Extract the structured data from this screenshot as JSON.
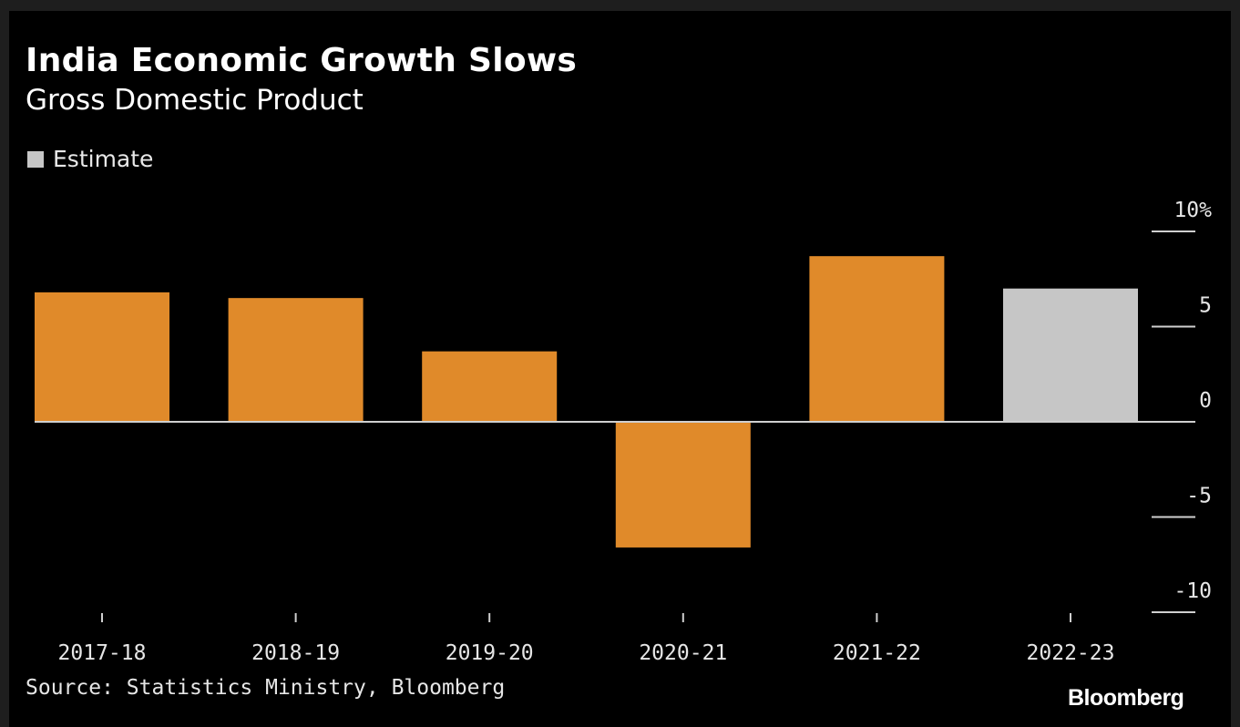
{
  "colors": {
    "background": "#000000",
    "actual": "#e08a2a",
    "estimate": "#c6c6c6",
    "axis": "#cfcfcf",
    "text": "#ffffff"
  },
  "chart_data": {
    "type": "bar",
    "title": "India Economic Growth Slows",
    "subtitle": "Gross Domestic Product",
    "xlabel": "",
    "ylabel": "",
    "categories": [
      "2017-18",
      "2018-19",
      "2019-20",
      "2020-21",
      "2021-22",
      "2022-23"
    ],
    "values": [
      6.8,
      6.5,
      3.7,
      -6.6,
      8.7,
      7.0
    ],
    "estimate_flags": [
      false,
      false,
      false,
      false,
      false,
      true
    ],
    "ylim": [
      -10,
      10
    ],
    "yticks": [
      10,
      5,
      0,
      -5,
      -10
    ],
    "ytick_labels": [
      "10%",
      "5",
      "0",
      "-5",
      "-10"
    ],
    "y_axis_side": "right",
    "grid": false,
    "legend": {
      "placement": "top-left",
      "entries": [
        {
          "label": "Estimate",
          "color": "#c6c6c6"
        }
      ]
    }
  },
  "footer": {
    "source": "Source: Statistics Ministry, Bloomberg",
    "logo_text": "Bloomberg"
  }
}
